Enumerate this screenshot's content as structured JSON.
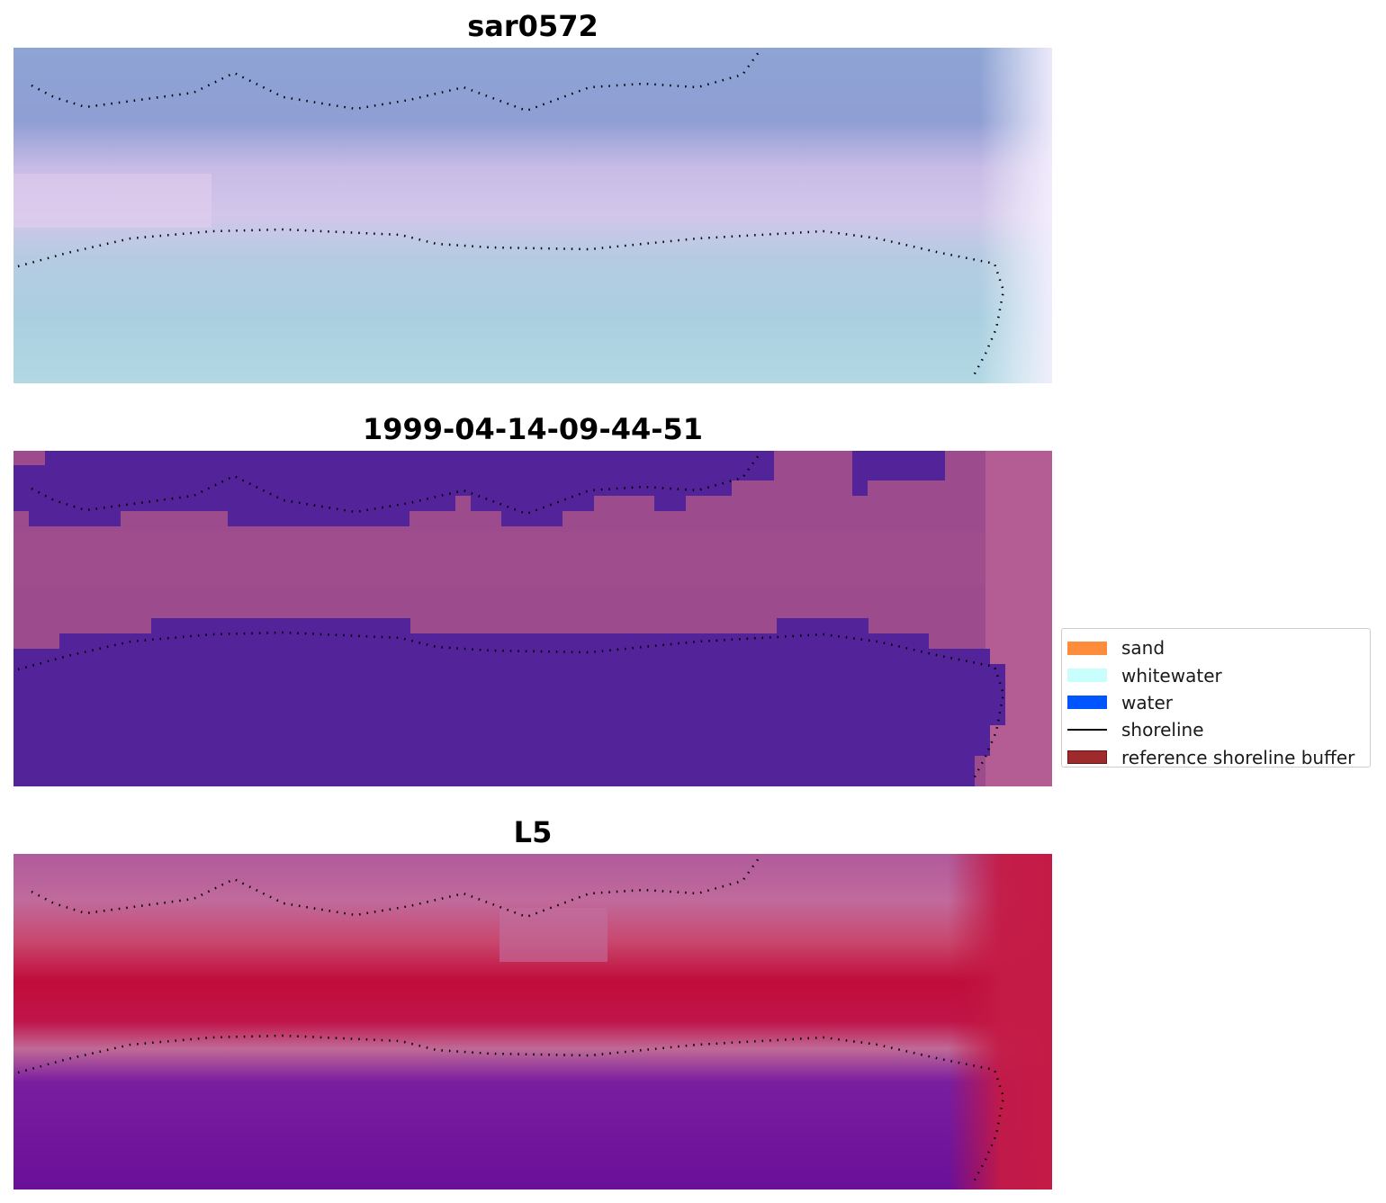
{
  "panels": {
    "top_title": "sar0572",
    "middle_title": "1999-04-14-09-44-51",
    "bottom_title": "L5"
  },
  "legend": {
    "items": [
      {
        "label": "sand",
        "color": "#ff8c3c",
        "kind": "patch"
      },
      {
        "label": "whitewater",
        "color": "#c8fffc",
        "kind": "patch"
      },
      {
        "label": "water",
        "color": "#0055ff",
        "kind": "patch"
      },
      {
        "label": "shoreline",
        "color": "#000000",
        "kind": "line"
      },
      {
        "label": "reference shoreline buffer",
        "color": "#9e2a2b",
        "kind": "patch"
      }
    ]
  },
  "colors": {
    "classified_water": "#522399",
    "ndwi_land": "#c0103a",
    "ndwi_water": "#6a139a",
    "rgb_water": "#a8cfe0",
    "rgb_sand": "#c9b8e8"
  }
}
